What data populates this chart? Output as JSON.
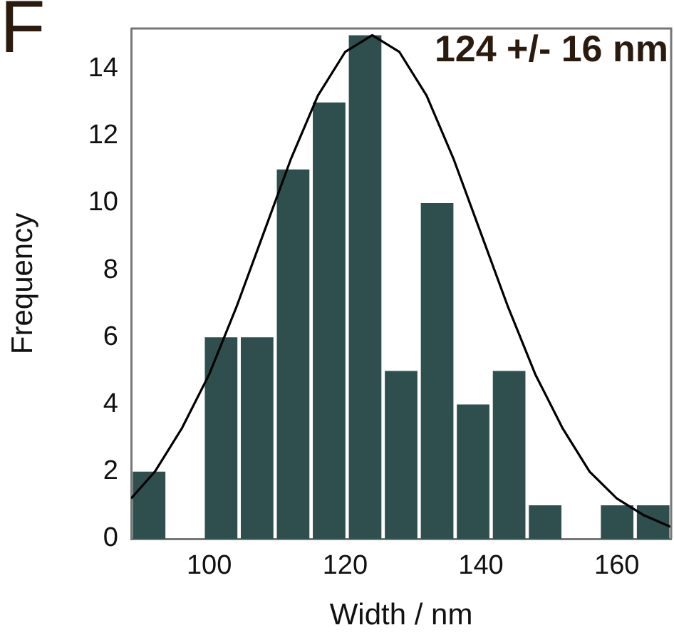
{
  "chart_data": {
    "type": "histogram",
    "xlabel": "Width / nm",
    "ylabel": "Frequency",
    "annotations": [
      "F",
      "124 +/- 16 nm"
    ],
    "bins": [
      88.5,
      93.8,
      99.1,
      104.4,
      109.7,
      115,
      120.3,
      125.6,
      130.9,
      136.2,
      141.5,
      146.8,
      152.1,
      157.4,
      162.7,
      168
    ],
    "values": [
      2,
      0,
      6,
      6,
      11,
      13,
      15,
      5,
      10,
      4,
      5,
      1,
      0,
      1,
      1
    ],
    "color": "#2f4f4f",
    "series": [
      {
        "type": "line",
        "color": "#000000",
        "x": [
          88.5,
          92,
          96,
          100,
          104,
          108,
          112,
          116,
          120,
          124,
          128,
          132,
          136,
          140,
          144,
          148,
          152,
          156,
          160,
          164,
          168
        ],
        "values": [
          1.2,
          2.0,
          3.3,
          4.9,
          6.9,
          9.1,
          11.3,
          13.2,
          14.5,
          15,
          14.5,
          13.2,
          11.3,
          9.1,
          6.9,
          4.9,
          3.3,
          2.0,
          1.2,
          0.7,
          0.35
        ]
      }
    ],
    "xlim": [
      88.5,
      168
    ],
    "xticks": [
      100,
      120,
      140,
      160
    ],
    "ylim": [
      0,
      15.2
    ],
    "yticks": [
      0,
      2,
      4,
      6,
      8,
      10,
      12,
      14
    ],
    "marker": "none",
    "line_style": "solid",
    "grid": false,
    "legend": false
  }
}
